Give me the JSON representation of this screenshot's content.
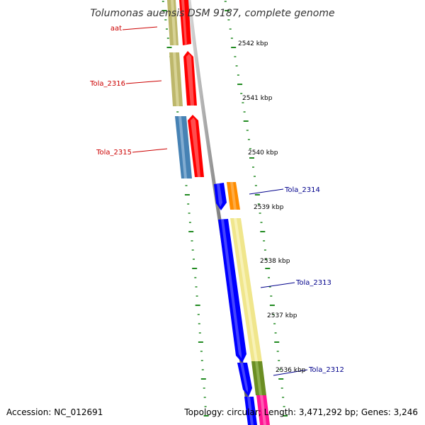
{
  "title": "Tolumonas auensis DSM 9187, complete genome",
  "footer": {
    "accession": "Accession: NC_012691",
    "summary": "Topology: circular; Length: 3,471,292 bp; Genes: 3,246"
  },
  "colors": {
    "backbone": "#7f7f7f",
    "tick": "#228b22",
    "forward_label": "#cc0000",
    "reverse_label": "#00008b"
  },
  "kbp_ticks": [
    "2542 kbp",
    "2541 kbp",
    "2540 kbp",
    "2539 kbp",
    "2538 kbp",
    "2537 kbp",
    "2536 kbp"
  ],
  "genes_forward": [
    {
      "label": "aat",
      "cds_color": "#ff0000",
      "gene_color": "#bdb76b"
    },
    {
      "label": "Tola_2316",
      "cds_color": "#ff0000",
      "gene_color": "#bdb76b"
    },
    {
      "label": "Tola_2315",
      "cds_color": "#ff0000",
      "gene_color": "#4682b4"
    }
  ],
  "genes_reverse": [
    {
      "label": "Tola_2314",
      "cds_color": "#0000ff",
      "gene_color": "#ff8c00"
    },
    {
      "label": "Tola_2313",
      "cds_color": "#0000ff",
      "gene_color": "#f0e68c"
    },
    {
      "label": "Tola_2312",
      "cds_color": "#0000ff",
      "gene_color": "#6b8e23"
    },
    {
      "label": "",
      "cds_color": "#0000ff",
      "gene_color": "#ff1493"
    }
  ]
}
